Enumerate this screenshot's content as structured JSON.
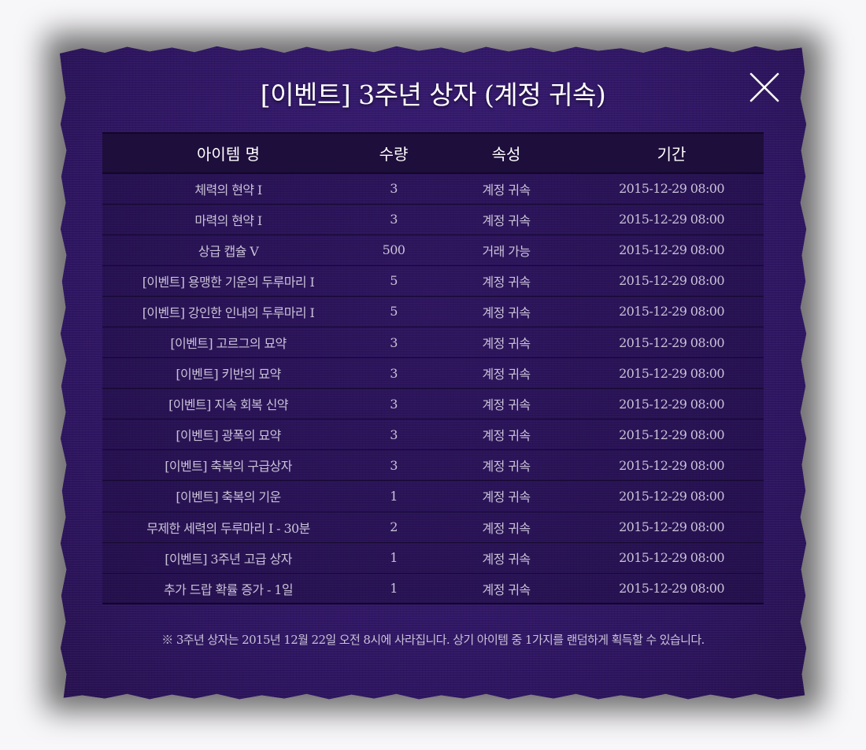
{
  "title": "[이벤트] 3주년 상자 (계정 귀속)",
  "close_icon": "close-x-icon",
  "table": {
    "headers": [
      "아이템 명",
      "수량",
      "속성",
      "기간"
    ],
    "rows": [
      [
        "체력의 현약 I",
        "3",
        "계정 귀속",
        "2015-12-29 08:00"
      ],
      [
        "마력의 현약 I",
        "3",
        "계정 귀속",
        "2015-12-29 08:00"
      ],
      [
        "상급 캡슐 V",
        "500",
        "거래 가능",
        "2015-12-29 08:00"
      ],
      [
        "[이벤트] 용맹한 기운의 두루마리 I",
        "5",
        "계정 귀속",
        "2015-12-29 08:00"
      ],
      [
        "[이벤트] 강인한 인내의 두루마리 I",
        "5",
        "계정 귀속",
        "2015-12-29 08:00"
      ],
      [
        "[이벤트] 고르그의 묘약",
        "3",
        "계정 귀속",
        "2015-12-29 08:00"
      ],
      [
        "[이벤트] 키반의 묘약",
        "3",
        "계정 귀속",
        "2015-12-29 08:00"
      ],
      [
        "[이벤트] 지속 회복 신약",
        "3",
        "계정 귀속",
        "2015-12-29 08:00"
      ],
      [
        "[이벤트] 광폭의 묘약",
        "3",
        "계정 귀속",
        "2015-12-29 08:00"
      ],
      [
        "[이벤트] 축복의 구급상자",
        "3",
        "계정 귀속",
        "2015-12-29 08:00"
      ],
      [
        "[이벤트] 축복의 기운",
        "1",
        "계정 귀속",
        "2015-12-29 08:00"
      ],
      [
        "무제한 세력의 두루마리 I - 30분",
        "2",
        "계정 귀속",
        "2015-12-29 08:00"
      ],
      [
        "[이벤트] 3주년 고급 상자",
        "1",
        "계정 귀속",
        "2015-12-29 08:00"
      ],
      [
        "추가 드랍 확률 증가 - 1일",
        "1",
        "계정 귀속",
        "2015-12-29 08:00"
      ]
    ]
  },
  "notice": "※ 3주년 상자는 2015년 12월 22일 오전 8시에 사라집니다. 상기 아이템 중 1가지를 랜덤하게 획득할 수 있습니다.",
  "colors": {
    "panel": "#33186a",
    "header_row": "#1e0e3b",
    "text_primary": "#ffffff",
    "text_secondary": "#c9c2d8"
  }
}
